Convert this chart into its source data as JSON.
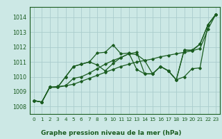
{
  "background_color": "#cce8e5",
  "grid_color": "#aacccc",
  "line_color": "#1a5c20",
  "border_color": "#1a5c20",
  "title": "Graphe pression niveau de la mer (hPa)",
  "xlim": [
    -0.5,
    23.5
  ],
  "ylim": [
    1007.5,
    1014.7
  ],
  "yticks": [
    1008,
    1009,
    1010,
    1011,
    1012,
    1013,
    1014
  ],
  "xticks": [
    0,
    1,
    2,
    3,
    4,
    5,
    6,
    7,
    8,
    9,
    10,
    11,
    12,
    13,
    14,
    15,
    16,
    17,
    18,
    19,
    20,
    21,
    22,
    23
  ],
  "series": [
    [
      1008.4,
      1008.3,
      1009.3,
      1009.3,
      1010.0,
      1010.7,
      1010.85,
      1011.0,
      1010.8,
      1010.4,
      1010.9,
      1011.3,
      1011.55,
      1011.65,
      1010.2,
      1010.2,
      1010.7,
      1010.4,
      1009.8,
      1011.8,
      1011.75,
      1012.2,
      1013.5,
      1014.2
    ],
    [
      1008.4,
      1008.3,
      1009.3,
      1009.35,
      1009.4,
      1009.5,
      1009.7,
      1009.9,
      1010.1,
      1010.3,
      1010.5,
      1010.7,
      1010.85,
      1011.0,
      1011.1,
      1011.2,
      1011.35,
      1011.45,
      1011.55,
      1011.65,
      1011.75,
      1011.9,
      1013.2,
      1014.2
    ],
    [
      1008.4,
      1008.3,
      1009.3,
      1009.3,
      1009.4,
      1009.9,
      1010.0,
      1010.25,
      1010.55,
      1010.85,
      1011.1,
      1011.3,
      1011.55,
      1011.5,
      1011.1,
      1010.2,
      1010.7,
      1010.4,
      1009.8,
      1010.0,
      1010.55,
      1010.6,
      1013.5,
      1014.2
    ],
    [
      1008.4,
      1008.3,
      1009.3,
      1009.3,
      1010.0,
      1010.7,
      1010.85,
      1011.0,
      1011.6,
      1011.65,
      1012.15,
      1011.55,
      1011.6,
      1010.5,
      1010.2,
      1010.2,
      1010.7,
      1010.4,
      1009.8,
      1011.8,
      1011.8,
      1012.2,
      1013.5,
      1014.2
    ]
  ],
  "title_fontsize": 6.5,
  "xlabel_fontsize": 5.2,
  "ylabel_fontsize": 5.8,
  "marker": "D",
  "markersize": 1.8,
  "linewidth": 0.9
}
